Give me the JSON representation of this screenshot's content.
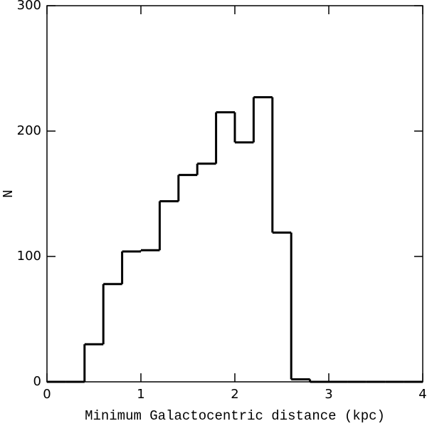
{
  "chart_data": {
    "type": "histogram",
    "xlabel": "Minimum Galactocentric distance (kpc)",
    "ylabel": "N",
    "bins": [
      0,
      0.2,
      0.4,
      0.6,
      0.8,
      1.0,
      1.2,
      1.4,
      1.6,
      1.8,
      2.0,
      2.2,
      2.4,
      2.6,
      2.8,
      3.0,
      3.2,
      3.4,
      3.6,
      3.8,
      4.0
    ],
    "values": [
      0,
      0,
      30,
      78,
      104,
      105,
      144,
      165,
      174,
      215,
      191,
      227,
      119,
      2,
      0,
      0,
      0,
      0,
      0,
      0
    ],
    "color": "#000000",
    "xlim": [
      0,
      4
    ],
    "xticks": [
      0,
      1,
      2,
      3,
      4
    ],
    "ylim": [
      0,
      300
    ],
    "yticks": [
      0,
      100,
      200,
      300
    ]
  }
}
